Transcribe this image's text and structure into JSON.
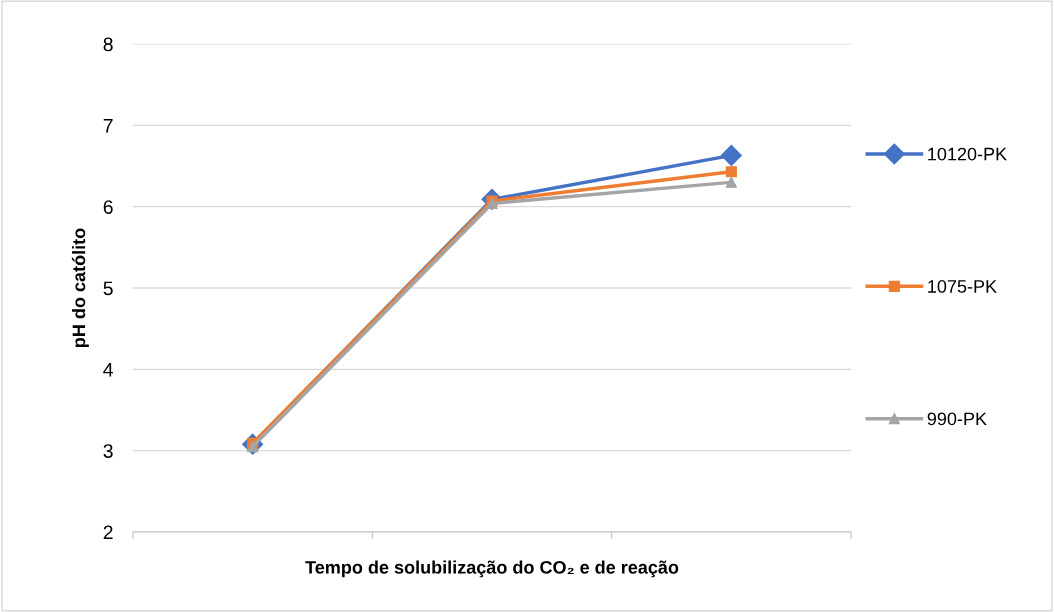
{
  "chart_data": {
    "type": "line",
    "xlabel": "Tempo de solubilização do CO₂ e de reação",
    "ylabel": "pH do católito",
    "categories": [
      null,
      null,
      null
    ],
    "series": [
      {
        "name": "10120-PK",
        "color": "#4472c4",
        "marker": "diamond",
        "values": [
          3.08,
          6.09,
          6.63
        ]
      },
      {
        "name": "1075-PK",
        "color": "#ed7d31",
        "marker": "square",
        "values": [
          3.09,
          6.07,
          6.43
        ]
      },
      {
        "name": "990-PK",
        "color": "#a5a5a5",
        "marker": "triangle",
        "values": [
          3.05,
          6.04,
          6.3
        ]
      }
    ],
    "ylim": [
      2,
      8
    ],
    "yticks": [
      2,
      3,
      4,
      5,
      6,
      7,
      8
    ],
    "grid": "y",
    "legend": "right",
    "line_style": "solid"
  }
}
